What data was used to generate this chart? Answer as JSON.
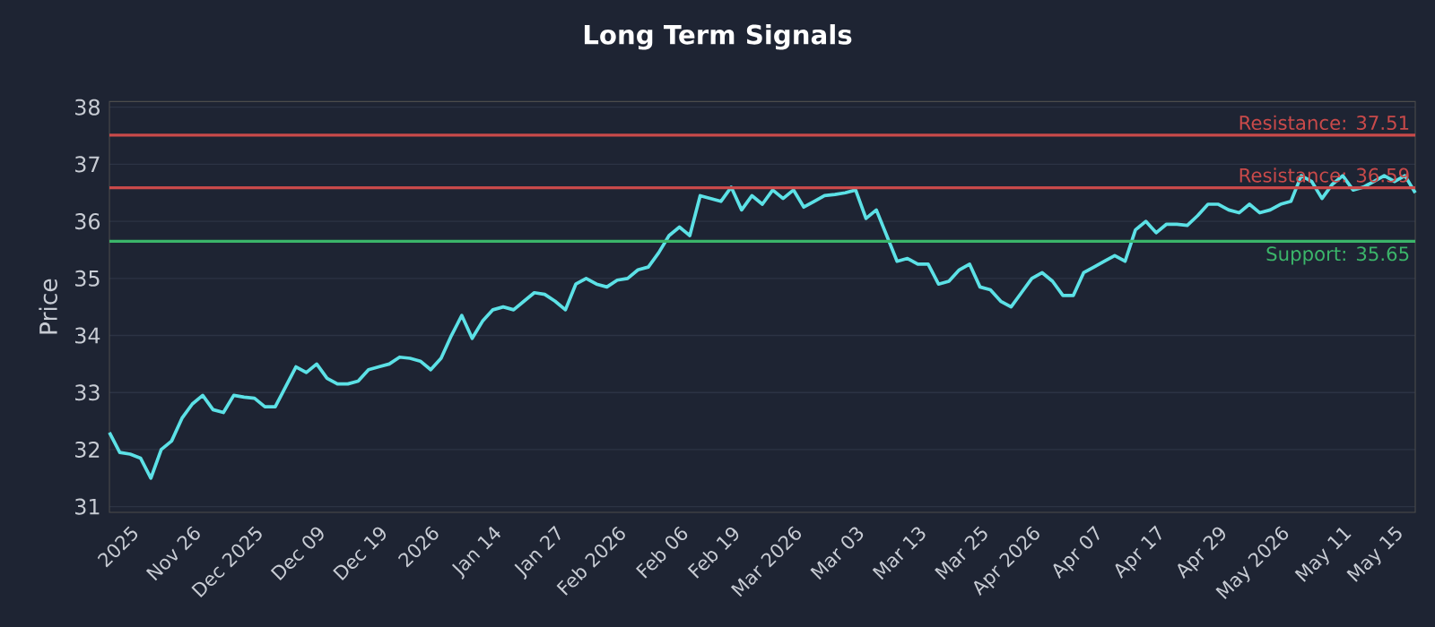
{
  "chart_data": {
    "type": "line",
    "title": "Long Term Signals",
    "ylabel": "Price",
    "categories": [
      null,
      null,
      "2025",
      null,
      null,
      null,
      null,
      null,
      "Nov 26",
      null,
      null,
      null,
      null,
      null,
      "Dec 2025",
      null,
      null,
      null,
      null,
      null,
      "Dec 09",
      null,
      null,
      null,
      null,
      null,
      "Dec 19",
      null,
      null,
      null,
      null,
      "2026",
      null,
      null,
      null,
      null,
      null,
      "Jan 14",
      null,
      null,
      null,
      null,
      null,
      "Jan 27",
      null,
      null,
      null,
      null,
      null,
      "Feb 2026",
      null,
      null,
      null,
      null,
      null,
      "Feb 06",
      null,
      null,
      null,
      null,
      "Feb 19",
      null,
      null,
      null,
      null,
      null,
      "Mar 2026",
      null,
      null,
      null,
      null,
      null,
      "Mar 03",
      null,
      null,
      null,
      null,
      null,
      "Mar 13",
      null,
      null,
      null,
      null,
      null,
      "Mar 25",
      null,
      null,
      null,
      null,
      "Apr 2026",
      null,
      null,
      null,
      null,
      null,
      "Apr 07",
      null,
      null,
      null,
      null,
      null,
      "Apr 17",
      null,
      null,
      null,
      null,
      null,
      "Apr 29",
      null,
      null,
      null,
      null,
      null,
      "May 2026",
      null,
      null,
      null,
      null,
      null,
      "May 11",
      null,
      null,
      null,
      null,
      "May 15",
      null,
      null
    ],
    "series": [
      {
        "color": "#5ce1e6",
        "values": [
          32.3,
          31.95,
          31.92,
          31.85,
          31.5,
          32.0,
          32.15,
          32.55,
          32.8,
          32.95,
          32.7,
          32.65,
          32.95,
          32.92,
          32.9,
          32.75,
          32.75,
          33.1,
          33.45,
          33.35,
          33.5,
          33.25,
          33.15,
          33.15,
          33.2,
          33.4,
          33.45,
          33.5,
          33.62,
          33.6,
          33.55,
          33.4,
          33.6,
          34.0,
          34.35,
          33.95,
          34.25,
          34.45,
          34.5,
          34.45,
          34.6,
          34.75,
          34.72,
          34.6,
          34.45,
          34.9,
          35.0,
          34.9,
          34.85,
          34.97,
          35.0,
          35.15,
          35.2,
          35.45,
          35.75,
          35.9,
          35.75,
          36.45,
          36.4,
          36.35,
          36.6,
          36.2,
          36.45,
          36.3,
          36.55,
          36.4,
          36.55,
          36.25,
          36.35,
          36.45,
          36.47,
          36.5,
          36.55,
          36.05,
          36.2,
          35.75,
          35.3,
          35.35,
          35.25,
          35.25,
          34.9,
          34.95,
          35.15,
          35.25,
          34.85,
          34.8,
          34.6,
          34.5,
          34.75,
          35.0,
          35.1,
          34.95,
          34.7,
          34.7,
          35.1,
          35.2,
          35.3,
          35.4,
          35.3,
          35.85,
          36.0,
          35.8,
          35.95,
          35.95,
          35.93,
          36.1,
          36.3,
          36.3,
          36.2,
          36.15,
          36.3,
          36.15,
          36.2,
          36.3,
          36.35,
          36.8,
          36.7,
          36.4,
          36.65,
          36.8,
          36.55,
          36.6,
          36.7,
          36.8,
          36.7,
          36.8,
          36.5
        ]
      }
    ],
    "ylim": [
      30.9,
      38.1
    ],
    "yticks": [
      31,
      32,
      33,
      34,
      35,
      36,
      37,
      38
    ],
    "grid": "y",
    "marker": "none",
    "line_style": "solid",
    "ref_lines": [
      {
        "axis": "y",
        "value": 37.51,
        "label": "Resistance: 37.51",
        "color": "#c94a4a"
      },
      {
        "axis": "y",
        "value": 36.59,
        "label": "Resistance: 36.59",
        "color": "#c94a4a"
      },
      {
        "axis": "y",
        "value": 35.65,
        "label": "Support: 35.65",
        "color": "#3bb56a"
      }
    ]
  }
}
